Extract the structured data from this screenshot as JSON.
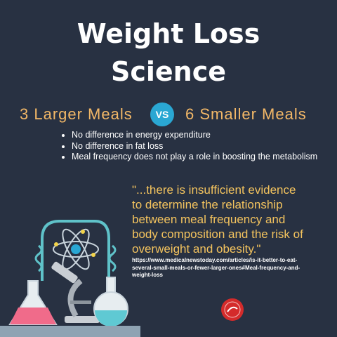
{
  "header": {
    "title_lines": [
      "Weight Loss",
      "Science"
    ]
  },
  "comparison": {
    "left": "3 Larger Meals",
    "badge": "VS",
    "right": "6 Smaller Meals"
  },
  "bullets": [
    "No difference in energy expenditure",
    "No difference in fat loss",
    "Meal frequency does not play a role in boosting the metabolism"
  ],
  "quote": {
    "lines": [
      "\"...there is insufficient evidence",
      "to determine the relationship",
      "between meal frequency and",
      "body composition and the risk of",
      "overweight and obesity.\""
    ]
  },
  "source": {
    "lines": [
      "https://www.medicalnewstoday.com/articles/is-it-better-to-eat-",
      "several-small-meals-or-fewer-larger-ones#Meal-frequency-and-",
      "weight-loss"
    ]
  }
}
